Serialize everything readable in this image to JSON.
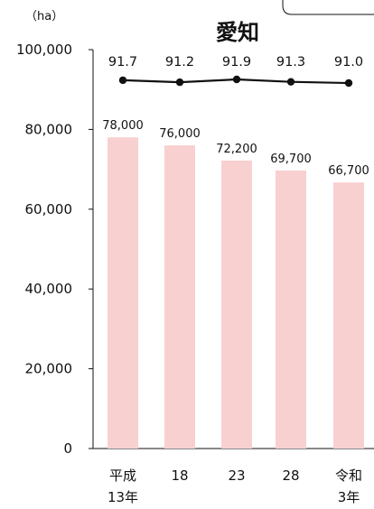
{
  "chart_data": {
    "type": "bar",
    "title": "愛知",
    "unit": "（ha）",
    "ylim": [
      0,
      100000
    ],
    "yticks": [
      "0",
      "20,000",
      "40,000",
      "60,000",
      "80,000",
      "100,000"
    ],
    "categories": [
      [
        "平成",
        "13年"
      ],
      [
        "18",
        ""
      ],
      [
        "23",
        ""
      ],
      [
        "28",
        ""
      ],
      [
        "令和",
        "3年"
      ]
    ],
    "values": [
      78000,
      76000,
      72200,
      69700,
      66700
    ],
    "value_labels": [
      "78,000",
      "76,000",
      "72,200",
      "69,700",
      "66,700"
    ],
    "line_series": {
      "values": [
        91.7,
        91.2,
        91.9,
        91.3,
        91.0
      ],
      "labels": [
        "91.7",
        "91.2",
        "91.9",
        "91.3",
        "91.0"
      ]
    },
    "colors": {
      "bar": "#f8d0d0",
      "line": "#111111",
      "axis": "#111111"
    }
  }
}
